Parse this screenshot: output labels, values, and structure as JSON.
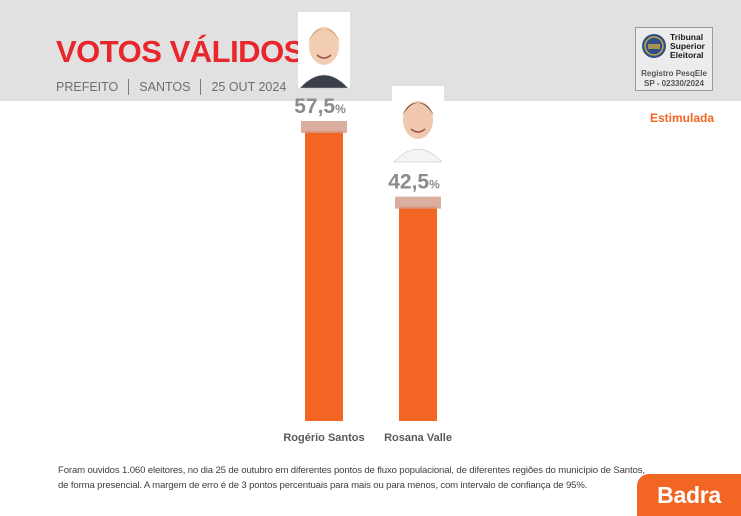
{
  "header": {
    "title": "VOTOS VÁLIDOS",
    "meta": [
      "PREFEITO",
      "SANTOS",
      "25 OUT 2024"
    ]
  },
  "tse_box": {
    "name_lines": [
      "Tribunal",
      "Superior",
      "Eleitoral"
    ],
    "registration_lines": [
      "Registro PesqEle",
      "SP - 02330/2024"
    ]
  },
  "tag": "Estimulada",
  "chart_data": {
    "type": "bar",
    "title": "VOTOS VÁLIDOS",
    "xlabel": "",
    "ylabel": "",
    "ylim": [
      0,
      57.5
    ],
    "grid": false,
    "categories": [
      "Rogério Santos",
      "Rosana Valle"
    ],
    "values": [
      57.5,
      42.5
    ],
    "value_labels": [
      "57,5",
      "42,5"
    ],
    "value_suffix": "%"
  },
  "footnote": [
    "Foram ouvidos 1.060 eleitores, no dia 25 de outubro em diferentes pontos de fluxo populacional, de diferentes regiões do município de Santos,",
    "de forma presencial. A margem de erro é de 3 pontos percentuais para mais ou para menos, com intervalo de confiança de 95%."
  ],
  "brand": "Badra",
  "colors": {
    "accent": "#f26522",
    "title": "#e8262c",
    "header_band": "#e1e1e2",
    "value_label": "#8a8b8d",
    "bar_cap": "#d5a08f"
  }
}
